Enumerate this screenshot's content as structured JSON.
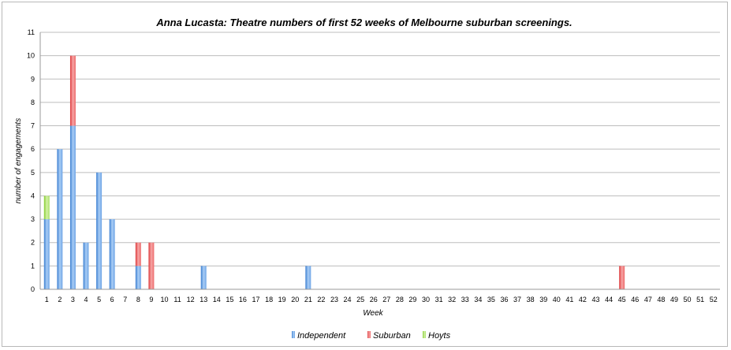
{
  "chart_data": {
    "type": "bar",
    "stacked": true,
    "title": "Anna Lucasta: Theatre numbers of first 52 weeks of Melbourne suburban screenings.",
    "xlabel": "Week",
    "ylabel": "number of engagements",
    "ylim": [
      0,
      11
    ],
    "yticks": [
      "0",
      "1",
      "2",
      "3",
      "4",
      "5",
      "6",
      "7",
      "8",
      "9",
      "10",
      "11"
    ],
    "categories": [
      "1",
      "2",
      "3",
      "4",
      "5",
      "6",
      "7",
      "8",
      "9",
      "10",
      "11",
      "12",
      "13",
      "14",
      "15",
      "16",
      "17",
      "18",
      "19",
      "20",
      "21",
      "22",
      "23",
      "24",
      "25",
      "26",
      "27",
      "28",
      "29",
      "30",
      "31",
      "32",
      "33",
      "34",
      "35",
      "36",
      "37",
      "38",
      "39",
      "40",
      "41",
      "42",
      "43",
      "44",
      "45",
      "46",
      "47",
      "48",
      "49",
      "50",
      "51",
      "52"
    ],
    "grid": true,
    "legend_position": "bottom",
    "series": [
      {
        "name": "Independent",
        "color": "#5b9bd5",
        "values": [
          3,
          6,
          7,
          2,
          5,
          3,
          0,
          1,
          0,
          0,
          0,
          0,
          1,
          0,
          0,
          0,
          0,
          0,
          0,
          0,
          1,
          0,
          0,
          0,
          0,
          0,
          0,
          0,
          0,
          0,
          0,
          0,
          0,
          0,
          0,
          0,
          0,
          0,
          0,
          0,
          0,
          0,
          0,
          0,
          0,
          0,
          0,
          0,
          0,
          0,
          0,
          0
        ]
      },
      {
        "name": "Suburban",
        "color": "#e8474a",
        "values": [
          0,
          0,
          3,
          0,
          0,
          0,
          0,
          1,
          2,
          0,
          0,
          0,
          0,
          0,
          0,
          0,
          0,
          0,
          0,
          0,
          0,
          0,
          0,
          0,
          0,
          0,
          0,
          0,
          0,
          0,
          0,
          0,
          0,
          0,
          0,
          0,
          0,
          0,
          0,
          0,
          0,
          0,
          0,
          0,
          1,
          0,
          0,
          0,
          0,
          0,
          0,
          0
        ]
      },
      {
        "name": "Hoyts",
        "color": "#9bd54a",
        "values": [
          1,
          0,
          0,
          0,
          0,
          0,
          0,
          0,
          0,
          0,
          0,
          0,
          0,
          0,
          0,
          0,
          0,
          0,
          0,
          0,
          0,
          0,
          0,
          0,
          0,
          0,
          0,
          0,
          0,
          0,
          0,
          0,
          0,
          0,
          0,
          0,
          0,
          0,
          0,
          0,
          0,
          0,
          0,
          0,
          0,
          0,
          0,
          0,
          0,
          0,
          0,
          0
        ]
      }
    ]
  }
}
